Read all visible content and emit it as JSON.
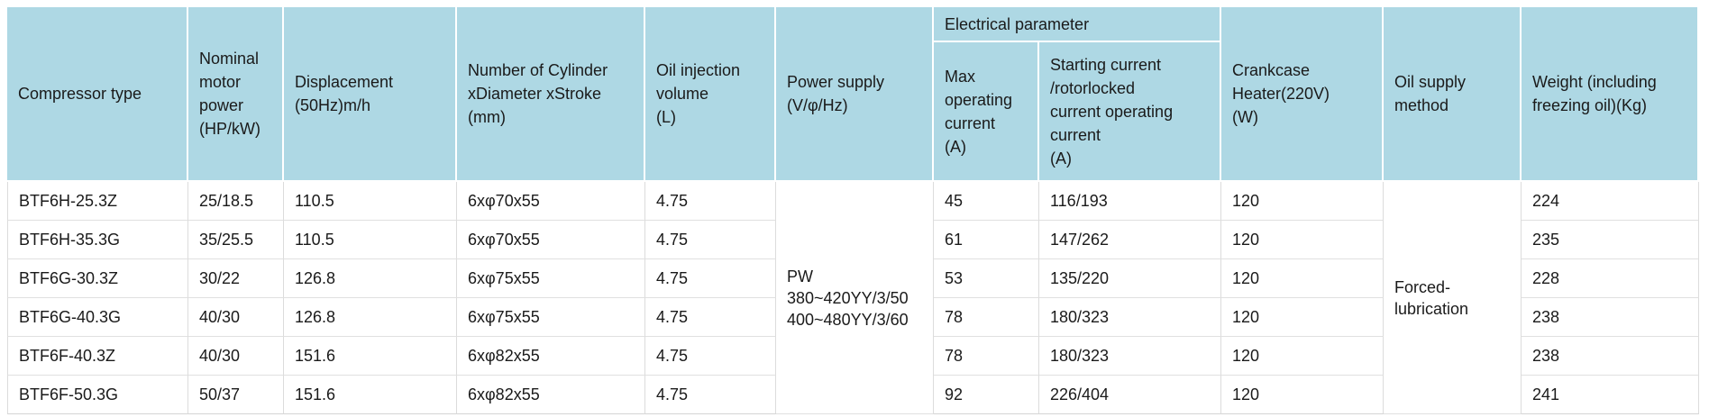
{
  "colors": {
    "header_background": "#aed8e4",
    "header_divider": "#ffffff",
    "body_divider": "#dcdcdc",
    "text": "#1a1a1a"
  },
  "table": {
    "headers": {
      "compressor_type": "Compressor type",
      "nominal_motor_power": "Nominal\nmotor\npower\n(HP/kW)",
      "displacement": "Displacement\n(50Hz)m/h",
      "cylinder": "Number of Cylinder\nxDiameter xStroke\n(mm)",
      "oil_injection": "Oil injection\nvolume\n(L)",
      "power_supply": "Power supply\n(V/φ/Hz)",
      "electrical_parameter": "Electrical parameter",
      "max_operating_current": "Max\noperating\ncurrent\n(A)",
      "starting_current": "Starting current\n/rotorlocked\ncurrent operating\ncurrent\n(A)",
      "crankcase_heater": "Crankcase\nHeater(220V)\n(W)",
      "oil_supply_method": "Oil supply\nmethod",
      "weight": "Weight (including\nfreezing oil)(Kg)"
    },
    "merged": {
      "power_supply_value": "PW\n380~420YY/3/50\n400~480YY/3/60",
      "oil_supply_value": "Forced-\nlubrication"
    },
    "rows": [
      {
        "compressor_type": "BTF6H-25.3Z",
        "nominal_motor_power": "25/18.5",
        "displacement": "110.5",
        "cylinder": "6xφ70x55",
        "oil_injection": "4.75",
        "max_operating_current": "45",
        "starting_current": "116/193",
        "crankcase_heater": "120",
        "weight": "224"
      },
      {
        "compressor_type": "BTF6H-35.3G",
        "nominal_motor_power": "35/25.5",
        "displacement": "110.5",
        "cylinder": "6xφ70x55",
        "oil_injection": "4.75",
        "max_operating_current": "61",
        "starting_current": "147/262",
        "crankcase_heater": "120",
        "weight": "235"
      },
      {
        "compressor_type": "BTF6G-30.3Z",
        "nominal_motor_power": "30/22",
        "displacement": "126.8",
        "cylinder": "6xφ75x55",
        "oil_injection": "4.75",
        "max_operating_current": "53",
        "starting_current": "135/220",
        "crankcase_heater": "120",
        "weight": "228"
      },
      {
        "compressor_type": "BTF6G-40.3G",
        "nominal_motor_power": "40/30",
        "displacement": "126.8",
        "cylinder": "6xφ75x55",
        "oil_injection": "4.75",
        "max_operating_current": "78",
        "starting_current": "180/323",
        "crankcase_heater": "120",
        "weight": "238"
      },
      {
        "compressor_type": "BTF6F-40.3Z",
        "nominal_motor_power": "40/30",
        "displacement": "151.6",
        "cylinder": "6xφ82x55",
        "oil_injection": "4.75",
        "max_operating_current": "78",
        "starting_current": "180/323",
        "crankcase_heater": "120",
        "weight": "238"
      },
      {
        "compressor_type": "BTF6F-50.3G",
        "nominal_motor_power": "50/37",
        "displacement": "151.6",
        "cylinder": "6xφ82x55",
        "oil_injection": "4.75",
        "max_operating_current": "92",
        "starting_current": "226/404",
        "crankcase_heater": "120",
        "weight": "241"
      }
    ]
  }
}
